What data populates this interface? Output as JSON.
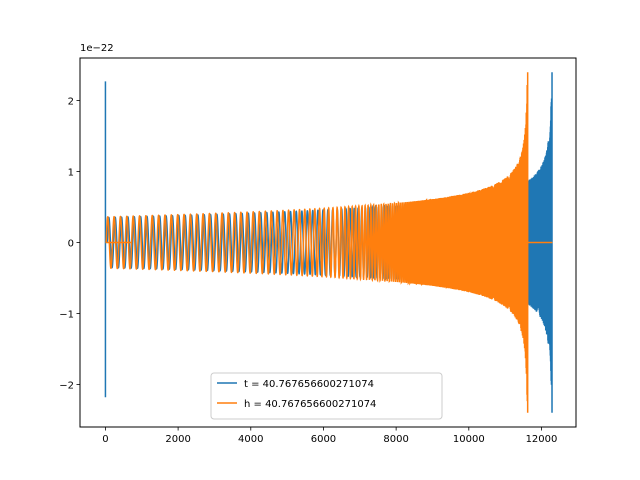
{
  "chart_data": {
    "type": "line",
    "title": "",
    "xlabel": "",
    "ylabel": "",
    "offset_text": "1e−22",
    "xlim": [
      -700,
      12950
    ],
    "ylim": [
      -2.6,
      2.6
    ],
    "y_scale": 1e-22,
    "grid": false,
    "legend_position": "lower center",
    "xticks": [
      0,
      2000,
      4000,
      6000,
      8000,
      10000,
      12000
    ],
    "xtick_labels": [
      "0",
      "2000",
      "4000",
      "6000",
      "8000",
      "10000",
      "12000"
    ],
    "yticks": [
      -2,
      -1,
      0,
      1,
      2
    ],
    "ytick_labels": [
      "−2",
      "−1",
      "0",
      "1",
      "2"
    ],
    "series": [
      {
        "name": "t = 40.767656600271074",
        "color": "#1f77b4",
        "description_points": {
          "start_spike": {
            "x": 0,
            "ymax": 2.27,
            "ymin": -2.18
          },
          "chirp_start_x": 50,
          "chirp_end_x": 12280,
          "amplitude_start": 0.4,
          "amplitude_mid": 0.48,
          "amplitude_peak": 2.4,
          "ringdown_end_x": 12290
        }
      },
      {
        "name": "h = 40.767656600271074",
        "color": "#ff7f0e",
        "description_points": {
          "flat_segment": {
            "x_start": 0,
            "x_end": 700,
            "y": 0
          },
          "chirp_start_x": 20,
          "merger_x": 11620,
          "amplitude_start": 0.41,
          "amplitude_mid": 0.5,
          "amplitude_peak": 2.4,
          "post_merger_flat": {
            "x_start": 11620,
            "x_end": 12300,
            "y": 0
          }
        }
      }
    ]
  }
}
